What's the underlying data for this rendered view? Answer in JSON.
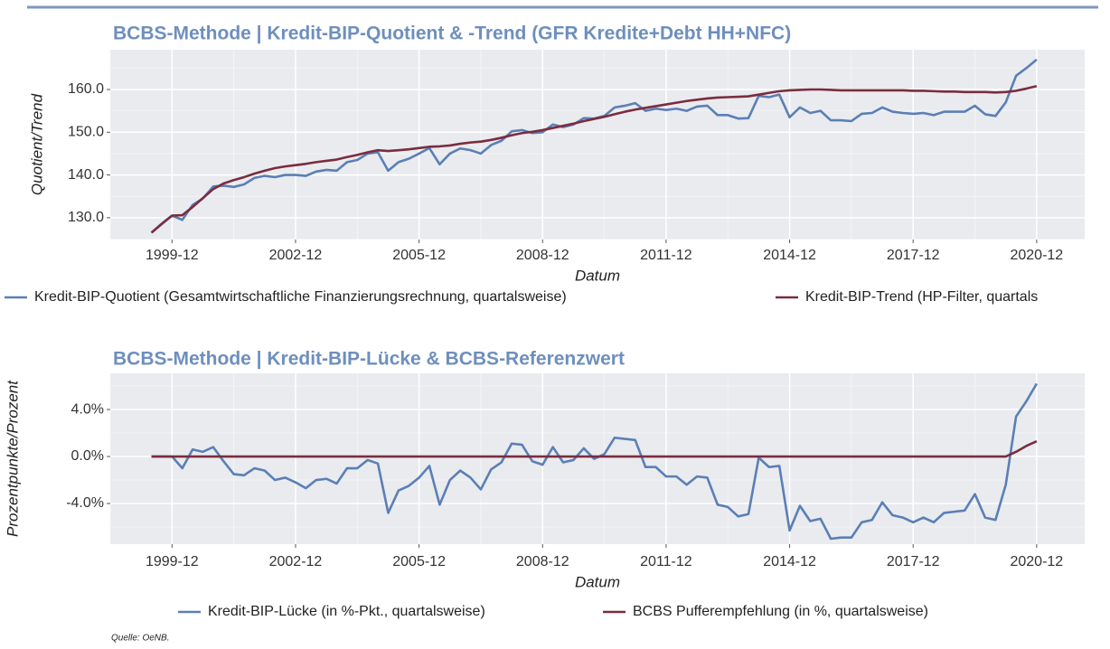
{
  "chart_data": [
    {
      "type": "line",
      "title": "BCBS-Methode | Kredit-BIP-Quotient & -Trend (GFR Kredite+Debt HH+NFC)",
      "xlabel": "Datum",
      "ylabel": "Quotient/Trend",
      "x": [
        "1999-06",
        "1999-09",
        "1999-12",
        "2000-03",
        "2000-06",
        "2000-09",
        "2000-12",
        "2001-03",
        "2001-06",
        "2001-09",
        "2001-12",
        "2002-03",
        "2002-06",
        "2002-09",
        "2002-12",
        "2003-03",
        "2003-06",
        "2003-09",
        "2003-12",
        "2004-03",
        "2004-06",
        "2004-09",
        "2004-12",
        "2005-03",
        "2005-06",
        "2005-09",
        "2005-12",
        "2006-03",
        "2006-06",
        "2006-09",
        "2006-12",
        "2007-03",
        "2007-06",
        "2007-09",
        "2007-12",
        "2008-03",
        "2008-06",
        "2008-09",
        "2008-12",
        "2009-03",
        "2009-06",
        "2009-09",
        "2009-12",
        "2010-03",
        "2010-06",
        "2010-09",
        "2010-12",
        "2011-03",
        "2011-06",
        "2011-09",
        "2011-12",
        "2012-03",
        "2012-06",
        "2012-09",
        "2012-12",
        "2013-03",
        "2013-06",
        "2013-09",
        "2013-12",
        "2014-03",
        "2014-06",
        "2014-09",
        "2014-12",
        "2015-03",
        "2015-06",
        "2015-09",
        "2015-12",
        "2016-03",
        "2016-06",
        "2016-09",
        "2016-12",
        "2017-03",
        "2017-06",
        "2017-09",
        "2017-12",
        "2018-03",
        "2018-06",
        "2018-09",
        "2018-12",
        "2019-03",
        "2019-06",
        "2019-09",
        "2019-12",
        "2020-03",
        "2020-06",
        "2020-09",
        "2020-12"
      ],
      "xlim": [
        "1998-06",
        "2022-02"
      ],
      "xticks": [
        "1999-12",
        "2002-12",
        "2005-12",
        "2008-12",
        "2011-12",
        "2014-12",
        "2017-12",
        "2020-12"
      ],
      "ylim": [
        124.9,
        169.3
      ],
      "yticks": [
        {
          "value": 130,
          "label": "130.0"
        },
        {
          "value": 140,
          "label": "140.0"
        },
        {
          "value": 150,
          "label": "150.0"
        },
        {
          "value": 160,
          "label": "160.0"
        }
      ],
      "grid": true,
      "series": [
        {
          "name": "Kredit-BIP-Quotient (Gesamtwirtschaftliche Finanzierungsrechnung, quartalsweise)",
          "color": "#5b7fb5",
          "values": [
            126.5,
            128.5,
            130.5,
            129.5,
            133,
            134.5,
            137.3,
            137.5,
            137.2,
            137.8,
            139.3,
            139.8,
            139.5,
            140,
            140,
            139.8,
            140.8,
            141.2,
            141,
            143,
            143.5,
            145,
            145.3,
            141,
            143,
            143.8,
            145,
            146.3,
            142.5,
            145,
            146.2,
            145.8,
            145,
            147,
            148,
            150.2,
            150.5,
            149.8,
            150,
            151.8,
            151.2,
            151.8,
            153.3,
            153.2,
            153.8,
            155.8,
            156.2,
            156.8,
            155,
            155.5,
            155.2,
            155.5,
            155,
            156,
            156.2,
            154,
            154,
            153.2,
            153.3,
            158.5,
            158.2,
            158.8,
            153.5,
            155.8,
            154.5,
            155,
            152.8,
            152.8,
            152.6,
            154.3,
            154.5,
            155.8,
            154.8,
            154.5,
            154.3,
            154.5,
            154,
            154.8,
            154.8,
            154.8,
            156.2,
            154.2,
            153.8,
            157,
            163.2,
            165,
            167
          ]
        },
        {
          "name": "Kredit-BIP-Trend (HP-Filter, quartals",
          "color": "#7b2c3e",
          "values": [
            126.5,
            128.6,
            130.5,
            130.6,
            132.5,
            134.6,
            136.7,
            138,
            138.8,
            139.5,
            140.3,
            141,
            141.6,
            142,
            142.3,
            142.6,
            143,
            143.3,
            143.6,
            144.2,
            144.7,
            145.3,
            145.8,
            145.6,
            145.8,
            146,
            146.3,
            146.6,
            146.7,
            146.9,
            147.3,
            147.6,
            147.8,
            148.2,
            148.7,
            149.3,
            149.8,
            150.1,
            150.5,
            151,
            151.5,
            152,
            152.6,
            153.1,
            153.6,
            154.2,
            154.8,
            155.3,
            155.7,
            156.1,
            156.5,
            156.9,
            157.3,
            157.6,
            157.9,
            158.1,
            158.2,
            158.3,
            158.4,
            158.8,
            159.2,
            159.6,
            159.8,
            159.9,
            160,
            160,
            159.9,
            159.8,
            159.8,
            159.8,
            159.8,
            159.8,
            159.8,
            159.8,
            159.7,
            159.7,
            159.6,
            159.5,
            159.5,
            159.4,
            159.4,
            159.4,
            159.3,
            159.4,
            159.7,
            160.2,
            160.8
          ]
        }
      ]
    },
    {
      "type": "line",
      "title": "BCBS-Methode | Kredit-BIP-Lücke & BCBS-Referenzwert",
      "xlabel": "Datum",
      "ylabel": "Prozentpunkte/Prozent",
      "x": [
        "1999-06",
        "1999-09",
        "1999-12",
        "2000-03",
        "2000-06",
        "2000-09",
        "2000-12",
        "2001-03",
        "2001-06",
        "2001-09",
        "2001-12",
        "2002-03",
        "2002-06",
        "2002-09",
        "2002-12",
        "2003-03",
        "2003-06",
        "2003-09",
        "2003-12",
        "2004-03",
        "2004-06",
        "2004-09",
        "2004-12",
        "2005-03",
        "2005-06",
        "2005-09",
        "2005-12",
        "2006-03",
        "2006-06",
        "2006-09",
        "2006-12",
        "2007-03",
        "2007-06",
        "2007-09",
        "2007-12",
        "2008-03",
        "2008-06",
        "2008-09",
        "2008-12",
        "2009-03",
        "2009-06",
        "2009-09",
        "2009-12",
        "2010-03",
        "2010-06",
        "2010-09",
        "2010-12",
        "2011-03",
        "2011-06",
        "2011-09",
        "2011-12",
        "2012-03",
        "2012-06",
        "2012-09",
        "2012-12",
        "2013-03",
        "2013-06",
        "2013-09",
        "2013-12",
        "2014-03",
        "2014-06",
        "2014-09",
        "2014-12",
        "2015-03",
        "2015-06",
        "2015-09",
        "2015-12",
        "2016-03",
        "2016-06",
        "2016-09",
        "2016-12",
        "2017-03",
        "2017-06",
        "2017-09",
        "2017-12",
        "2018-03",
        "2018-06",
        "2018-09",
        "2018-12",
        "2019-03",
        "2019-06",
        "2019-09",
        "2019-12",
        "2020-03",
        "2020-06",
        "2020-09",
        "2020-12"
      ],
      "xlim": [
        "1998-06",
        "2022-02"
      ],
      "xticks": [
        "1999-12",
        "2002-12",
        "2005-12",
        "2008-12",
        "2011-12",
        "2014-12",
        "2017-12",
        "2020-12"
      ],
      "ylim": [
        -7.46,
        7.08
      ],
      "yticks": [
        {
          "value": -4,
          "label": "-4.0%"
        },
        {
          "value": 0,
          "label": "0.0%"
        },
        {
          "value": 4,
          "label": "4.0%"
        }
      ],
      "grid": true,
      "series": [
        {
          "name": "Kredit-BIP-Lücke (in %-Pkt., quartalsweise)",
          "color": "#5b7fb5",
          "values": [
            0,
            0,
            0,
            -1.0,
            0.6,
            0.4,
            0.8,
            -0.4,
            -1.5,
            -1.6,
            -1.0,
            -1.2,
            -2.0,
            -1.8,
            -2.2,
            -2.7,
            -2.0,
            -1.9,
            -2.3,
            -1.0,
            -1.0,
            -0.3,
            -0.6,
            -4.8,
            -2.9,
            -2.5,
            -1.8,
            -0.8,
            -4.1,
            -2.0,
            -1.2,
            -1.8,
            -2.8,
            -1.1,
            -0.5,
            1.1,
            1.0,
            -0.4,
            -0.7,
            0.8,
            -0.5,
            -0.3,
            0.7,
            -0.2,
            0.2,
            1.6,
            1.5,
            1.4,
            -0.9,
            -0.9,
            -1.7,
            -1.7,
            -2.4,
            -1.7,
            -1.8,
            -4.1,
            -4.3,
            -5.1,
            -4.9,
            -0.1,
            -0.9,
            -0.8,
            -6.3,
            -4.2,
            -5.5,
            -5.3,
            -7.0,
            -6.9,
            -6.9,
            -5.6,
            -5.4,
            -3.9,
            -5.0,
            -5.2,
            -5.6,
            -5.2,
            -5.6,
            -4.8,
            -4.7,
            -4.6,
            -3.2,
            -5.2,
            -5.4,
            -2.4,
            3.4,
            4.7,
            6.2
          ]
        },
        {
          "name": "BCBS Pufferempfehlung (in %, quartalsweise)",
          "color": "#7b2c3e",
          "values": [
            0,
            0,
            0,
            0,
            0,
            0,
            0,
            0,
            0,
            0,
            0,
            0,
            0,
            0,
            0,
            0,
            0,
            0,
            0,
            0,
            0,
            0,
            0,
            0,
            0,
            0,
            0,
            0,
            0,
            0,
            0,
            0,
            0,
            0,
            0,
            0,
            0,
            0,
            0,
            0,
            0,
            0,
            0,
            0,
            0,
            0,
            0,
            0,
            0,
            0,
            0,
            0,
            0,
            0,
            0,
            0,
            0,
            0,
            0,
            0,
            0,
            0,
            0,
            0,
            0,
            0,
            0,
            0,
            0,
            0,
            0,
            0,
            0,
            0,
            0,
            0,
            0,
            0,
            0,
            0,
            0,
            0,
            0,
            0,
            0.4,
            0.9,
            1.3
          ]
        }
      ]
    }
  ],
  "source": "Quelle: OeNB."
}
